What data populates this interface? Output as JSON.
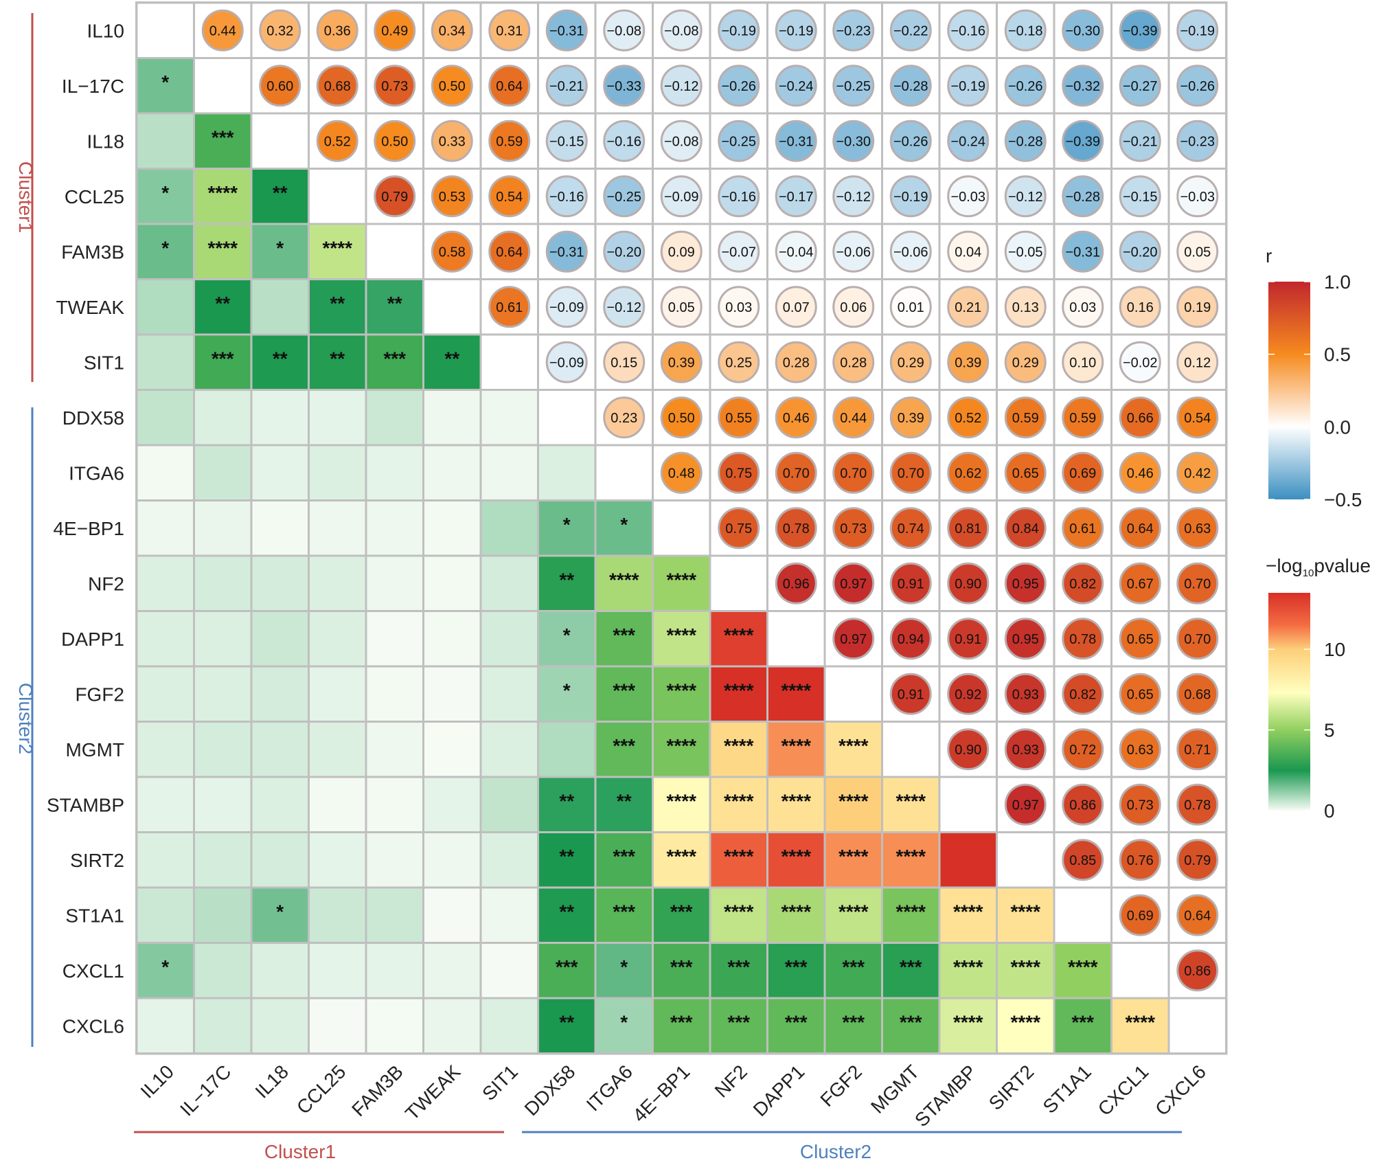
{
  "chart_data": {
    "type": "heatmap",
    "title": "",
    "labels": [
      "IL10",
      "IL−17C",
      "IL18",
      "CCL25",
      "FAM3B",
      "TWEAK",
      "SIT1",
      "DDX58",
      "ITGA6",
      "4E−BP1",
      "NF2",
      "DAPP1",
      "FGF2",
      "MGMT",
      "STAMBP",
      "SIRT2",
      "ST1A1",
      "CXCL1",
      "CXCL6"
    ],
    "clusters": [
      {
        "name": "Cluster1",
        "members": 7,
        "color": "#c0504d"
      },
      {
        "name": "Cluster2",
        "members": 12,
        "color": "#4f81bd"
      }
    ],
    "upper_r": [
      [
        0.44,
        0.32,
        0.36,
        0.49,
        0.34,
        0.31,
        -0.31,
        -0.08,
        -0.08,
        -0.19,
        -0.19,
        -0.23,
        -0.22,
        -0.16,
        -0.18,
        -0.3,
        -0.39,
        -0.19
      ],
      [
        0.6,
        0.68,
        0.73,
        0.5,
        0.64,
        -0.21,
        -0.33,
        -0.12,
        -0.26,
        -0.24,
        -0.25,
        -0.28,
        -0.19,
        -0.26,
        -0.32,
        -0.27,
        -0.26
      ],
      [
        0.52,
        0.5,
        0.33,
        0.59,
        -0.15,
        -0.16,
        -0.08,
        -0.25,
        -0.31,
        -0.3,
        -0.26,
        -0.24,
        -0.28,
        -0.39,
        -0.21,
        -0.23
      ],
      [
        0.79,
        0.53,
        0.54,
        -0.16,
        -0.25,
        -0.09,
        -0.16,
        -0.17,
        -0.12,
        -0.19,
        -0.03,
        -0.12,
        -0.28,
        -0.15,
        -0.03
      ],
      [
        0.58,
        0.64,
        -0.31,
        -0.2,
        0.09,
        -0.07,
        -0.04,
        -0.06,
        -0.06,
        0.04,
        -0.05,
        -0.31,
        -0.2,
        0.05
      ],
      [
        0.61,
        -0.09,
        -0.12,
        0.05,
        0.03,
        0.07,
        0.06,
        0.01,
        0.21,
        0.13,
        0.03,
        0.16,
        0.19
      ],
      [
        -0.09,
        0.15,
        0.39,
        0.25,
        0.28,
        0.28,
        0.29,
        0.39,
        0.29,
        0.1,
        -0.02,
        0.12
      ],
      [
        0.23,
        0.5,
        0.55,
        0.46,
        0.44,
        0.39,
        0.52,
        0.59,
        0.59,
        0.66,
        0.54
      ],
      [
        0.48,
        0.75,
        0.7,
        0.7,
        0.7,
        0.62,
        0.65,
        0.69,
        0.46,
        0.42
      ],
      [
        0.75,
        0.78,
        0.73,
        0.74,
        0.81,
        0.84,
        0.61,
        0.64,
        0.63
      ],
      [
        0.96,
        0.97,
        0.91,
        0.9,
        0.95,
        0.82,
        0.67,
        0.7
      ],
      [
        0.97,
        0.94,
        0.91,
        0.95,
        0.78,
        0.65,
        0.7
      ],
      [
        0.91,
        0.92,
        0.93,
        0.82,
        0.65,
        0.68
      ],
      [
        0.9,
        0.93,
        0.72,
        0.63,
        0.71
      ],
      [
        0.97,
        0.86,
        0.73,
        0.78
      ],
      [
        0.85,
        0.76,
        0.79
      ],
      [
        0.69,
        0.64
      ],
      [
        0.86
      ],
      []
    ],
    "lower_neglog10p": [
      [],
      [
        1.5
      ],
      [
        0.7,
        3.5
      ],
      [
        1.3,
        5.5,
        2.5
      ],
      [
        1.6,
        5.5,
        1.6,
        6.0
      ],
      [
        0.8,
        2.5,
        0.7,
        2.4,
        2.2
      ],
      [
        0.6,
        3.3,
        2.6,
        2.7,
        3.3,
        2.6
      ],
      [
        0.6,
        0.3,
        0.2,
        0.2,
        0.5,
        0.1,
        0.1
      ],
      [
        0.05,
        0.5,
        0.2,
        0.3,
        0.2,
        0.1,
        0.1,
        0.3
      ],
      [
        0.1,
        0.15,
        0.05,
        0.1,
        0.1,
        0.05,
        0.8,
        1.6,
        1.6
      ],
      [
        0.3,
        0.4,
        0.4,
        0.3,
        0.1,
        0.05,
        0.4,
        2.8,
        5.5,
        5.2
      ],
      [
        0.3,
        0.3,
        0.5,
        0.3,
        0.02,
        0.05,
        0.4,
        1.2,
        4.0,
        6.0,
        13.0
      ],
      [
        0.3,
        0.3,
        0.4,
        0.2,
        0.05,
        0.02,
        0.3,
        1.0,
        4.0,
        4.5,
        13.5,
        13.5
      ],
      [
        0.3,
        0.4,
        0.4,
        0.3,
        0.1,
        0.01,
        0.3,
        0.8,
        4.0,
        4.5,
        9.5,
        11.0,
        9.0
      ],
      [
        0.2,
        0.2,
        0.3,
        0.05,
        0.05,
        0.2,
        0.6,
        2.3,
        2.3,
        7.5,
        9.0,
        9.0,
        10.0,
        9.0
      ],
      [
        0.3,
        0.4,
        0.4,
        0.2,
        0.1,
        0.1,
        0.3,
        2.5,
        3.5,
        8.5,
        12.0,
        12.5,
        11.0,
        11.0
      ],
      [
        0.5,
        0.7,
        1.5,
        0.5,
        0.5,
        0.02,
        0.1,
        2.6,
        3.8,
        3.0,
        6.0,
        5.5,
        6.0,
        4.5,
        9.0,
        9.0
      ],
      [
        1.3,
        0.5,
        0.3,
        0.2,
        0.2,
        0.15,
        0.02,
        3.5,
        1.7,
        3.5,
        3.2,
        2.8,
        3.3,
        2.8,
        6.0,
        6.0,
        5.0
      ],
      [
        0.2,
        0.4,
        0.3,
        0.02,
        0.03,
        0.15,
        0.3,
        2.5,
        1.0,
        4.0,
        4.0,
        4.0,
        4.0,
        4.0,
        6.5,
        7.3,
        4.0,
        9.0
      ]
    ],
    "lower_stars": [
      [],
      [
        "*"
      ],
      [
        "",
        "***"
      ],
      [
        "*",
        "****",
        "**"
      ],
      [
        "*",
        "****",
        "*",
        "****"
      ],
      [
        "",
        "**",
        "",
        "**",
        "**"
      ],
      [
        "",
        "***",
        "**",
        "**",
        "***",
        "**"
      ],
      [
        "",
        "",
        "",
        "",
        "",
        "",
        ""
      ],
      [
        "",
        "",
        "",
        "",
        "",
        "",
        "",
        ""
      ],
      [
        "",
        "",
        "",
        "",
        "",
        "",
        "",
        "*",
        "*"
      ],
      [
        "",
        "",
        "",
        "",
        "",
        "",
        "",
        "**",
        "****",
        "****"
      ],
      [
        "",
        "",
        "",
        "",
        "",
        "",
        "",
        "*",
        "***",
        "****",
        "****"
      ],
      [
        "",
        "",
        "",
        "",
        "",
        "",
        "",
        "*",
        "***",
        "****",
        "****",
        "****"
      ],
      [
        "",
        "",
        "",
        "",
        "",
        "",
        "",
        "",
        "***",
        "****",
        "****",
        "****",
        "****"
      ],
      [
        "",
        "",
        "",
        "",
        "",
        "",
        "",
        "**",
        "**",
        "****",
        "****",
        "****",
        "****",
        "****"
      ],
      [
        "",
        "",
        "",
        "",
        "",
        "",
        "",
        "**",
        "***",
        "****",
        "****",
        "****",
        "****",
        "****"
      ],
      [
        "",
        "",
        "*",
        "",
        "",
        "",
        "",
        "**",
        "***",
        "***",
        "****",
        "****",
        "****",
        "****",
        "****",
        "****"
      ],
      [
        "*",
        "",
        "",
        "",
        "",
        "",
        "",
        "***",
        "*",
        "***",
        "***",
        "***",
        "***",
        "***",
        "****",
        "****",
        "****"
      ],
      [
        "",
        "",
        "",
        "",
        "",
        "",
        "",
        "**",
        "*",
        "***",
        "***",
        "***",
        "***",
        "***",
        "****",
        "****",
        "***",
        "****"
      ]
    ],
    "legend_r": {
      "title": "r",
      "ticks": [
        "1.0",
        "0.5",
        "0.0",
        "−0.5"
      ],
      "range": [
        -0.5,
        1.0
      ]
    },
    "legend_p": {
      "title_main": "−log",
      "title_sub": "10",
      "title_tail": "pvalue",
      "ticks": [
        "10",
        "5",
        "0"
      ],
      "range": [
        0,
        13.5
      ]
    },
    "colors": {
      "r_neg": "#3b8fc1",
      "r_zero": "#ffffff",
      "r_mid": "#f68b1f",
      "r_pos": "#c1272d",
      "grid": "#bfbfbf",
      "circle_border": "#b9aeae"
    }
  }
}
